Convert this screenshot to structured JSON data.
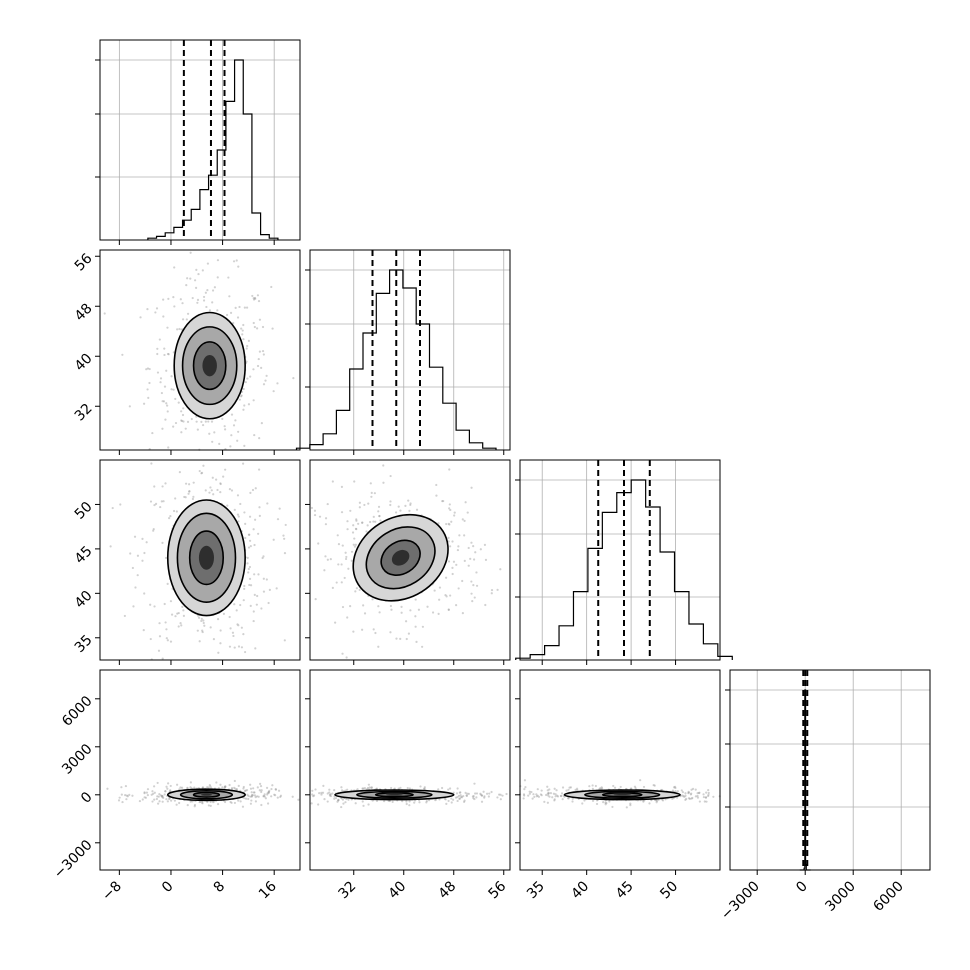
{
  "chart_data": {
    "type": "corner",
    "title": "",
    "params": [
      {
        "label": "",
        "range": [
          -11,
          20
        ],
        "ticks": [
          "−8",
          "0",
          "8",
          "16"
        ],
        "tick_values": [
          -8,
          0,
          8,
          16
        ],
        "quantiles": [
          2,
          6.2,
          8.3
        ],
        "peak": 6.5,
        "sigma": 2.4,
        "skew": -1.5
      },
      {
        "label": "",
        "range": [
          25,
          57
        ],
        "ticks": [
          "32",
          "40",
          "48",
          "56"
        ],
        "tick_values": [
          32,
          40,
          48,
          56
        ],
        "quantiles": [
          35,
          38.8,
          42.6
        ],
        "peak": 38.8,
        "sigma": 3.8,
        "skew": 0
      },
      {
        "label": "",
        "range": [
          32.5,
          55
        ],
        "ticks": [
          "35",
          "40",
          "45",
          "50"
        ],
        "tick_values": [
          35,
          40,
          45,
          50
        ],
        "quantiles": [
          41.3,
          44.2,
          47.1
        ],
        "peak": 44.2,
        "sigma": 2.9,
        "skew": 0
      },
      {
        "label": "",
        "range": [
          -4700,
          7800
        ],
        "ticks": [
          "−3000",
          "0",
          "3000",
          "6000"
        ],
        "tick_values": [
          -3000,
          0,
          3000,
          6000
        ],
        "quantiles": [
          -120,
          0,
          130
        ],
        "peak": 0,
        "sigma": 80,
        "skew": 0
      }
    ],
    "hist_heights": [
      [
        0.01,
        0.02,
        0.04,
        0.07,
        0.11,
        0.17,
        0.28,
        0.36,
        0.5,
        0.77,
        1.0,
        0.7,
        0.15,
        0.03,
        0.01
      ],
      [
        0.01,
        0.03,
        0.09,
        0.22,
        0.45,
        0.65,
        0.87,
        1.0,
        0.9,
        0.7,
        0.46,
        0.26,
        0.11,
        0.04,
        0.01
      ],
      [
        0.01,
        0.03,
        0.08,
        0.19,
        0.38,
        0.62,
        0.82,
        0.93,
        1.0,
        0.85,
        0.6,
        0.38,
        0.2,
        0.09,
        0.02
      ],
      [
        0.0,
        0.0,
        0.0,
        0.0,
        0.0,
        0.0,
        0.01,
        1.0,
        0.03,
        0.0,
        0.0,
        0.0,
        0.0,
        0.0,
        0.0
      ]
    ],
    "hist_ymax_label": "",
    "show_grid": true,
    "contours": [
      {
        "row": 1,
        "col": 0,
        "center": [
          6.0,
          38.5
        ],
        "rx": [
          5.5,
          4.2,
          2.5
        ],
        "ry": [
          8.5,
          6.2,
          3.8
        ]
      },
      {
        "row": 2,
        "col": 0,
        "center": [
          5.5,
          44.0
        ],
        "rx": [
          6.0,
          4.5,
          2.6
        ],
        "ry": [
          6.5,
          5.0,
          3.0
        ]
      },
      {
        "row": 2,
        "col": 1,
        "center": [
          39.5,
          44.0
        ],
        "rx": [
          8.0,
          5.8,
          3.3
        ],
        "ry": [
          4.5,
          3.2,
          1.8
        ],
        "tilt": -32
      },
      {
        "row": 3,
        "col": 0,
        "center": [
          5.5,
          0
        ],
        "rx": [
          6.0,
          4.0,
          2.0
        ],
        "ry": [
          350,
          250,
          140
        ]
      },
      {
        "row": 3,
        "col": 1,
        "center": [
          38.5,
          0
        ],
        "rx": [
          9.5,
          6.0,
          3.0
        ],
        "ry": [
          300,
          210,
          120
        ]
      },
      {
        "row": 3,
        "col": 2,
        "center": [
          44.0,
          0
        ],
        "rx": [
          6.5,
          4.2,
          2.2
        ],
        "ry": [
          300,
          210,
          120
        ]
      }
    ]
  }
}
